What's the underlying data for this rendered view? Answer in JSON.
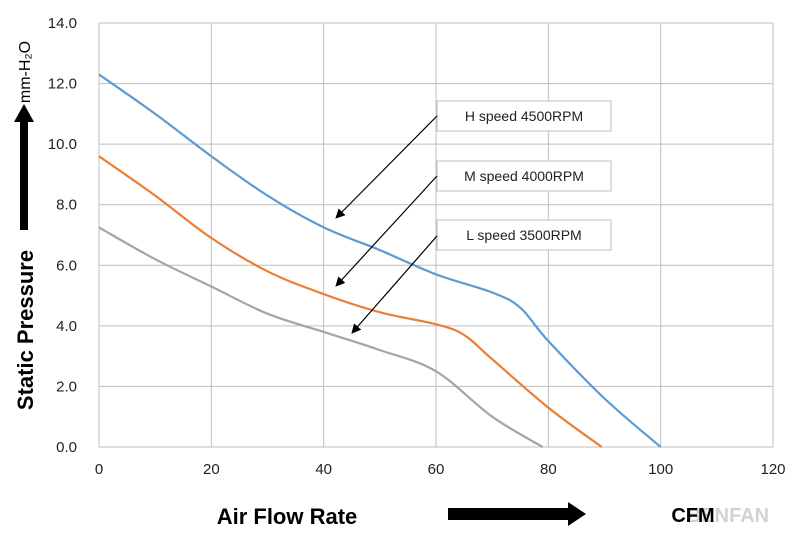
{
  "chart_data": {
    "type": "line",
    "x_range": [
      0,
      120
    ],
    "y_range": [
      0,
      14
    ],
    "x_ticks": [
      "0",
      "20",
      "40",
      "60",
      "80",
      "100",
      "120"
    ],
    "y_ticks": [
      "0.0",
      "2.0",
      "4.0",
      "6.0",
      "8.0",
      "10.0",
      "12.0",
      "14.0"
    ],
    "grid": true,
    "xlabel": "Air  Flow  Rate",
    "x_unit": "CFM",
    "ylabel": "Static  Pressure",
    "y_unit": "mm-H₂O",
    "series": [
      {
        "name": "H  speed  4500RPM",
        "color": "#5b9bd5",
        "points": [
          [
            0,
            12.3
          ],
          [
            10,
            11.0
          ],
          [
            20,
            9.6
          ],
          [
            30,
            8.3
          ],
          [
            40,
            7.25
          ],
          [
            50,
            6.5
          ],
          [
            60,
            5.7
          ],
          [
            70,
            5.1
          ],
          [
            75,
            4.6
          ],
          [
            80,
            3.5
          ],
          [
            90,
            1.6
          ],
          [
            100,
            0.0
          ]
        ]
      },
      {
        "name": "M  speed  4000RPM",
        "color": "#ed7d31",
        "points": [
          [
            0,
            9.6
          ],
          [
            10,
            8.3
          ],
          [
            20,
            6.9
          ],
          [
            30,
            5.8
          ],
          [
            40,
            5.05
          ],
          [
            50,
            4.45
          ],
          [
            60,
            4.05
          ],
          [
            65,
            3.7
          ],
          [
            70,
            2.9
          ],
          [
            80,
            1.3
          ],
          [
            89.5,
            0.0
          ]
        ]
      },
      {
        "name": "L  speed  3500RPM",
        "color": "#a5a5a5",
        "points": [
          [
            0,
            7.25
          ],
          [
            10,
            6.2
          ],
          [
            20,
            5.3
          ],
          [
            30,
            4.4
          ],
          [
            40,
            3.8
          ],
          [
            50,
            3.2
          ],
          [
            60,
            2.5
          ],
          [
            70,
            1.0
          ],
          [
            79,
            0.0
          ]
        ]
      }
    ],
    "callouts": [
      {
        "text": "H  speed  4500RPM",
        "series": 0
      },
      {
        "text": "M  speed  4000RPM",
        "series": 1
      },
      {
        "text": "L  speed  3500RPM",
        "series": 2
      }
    ],
    "watermark": "BENFAN"
  }
}
